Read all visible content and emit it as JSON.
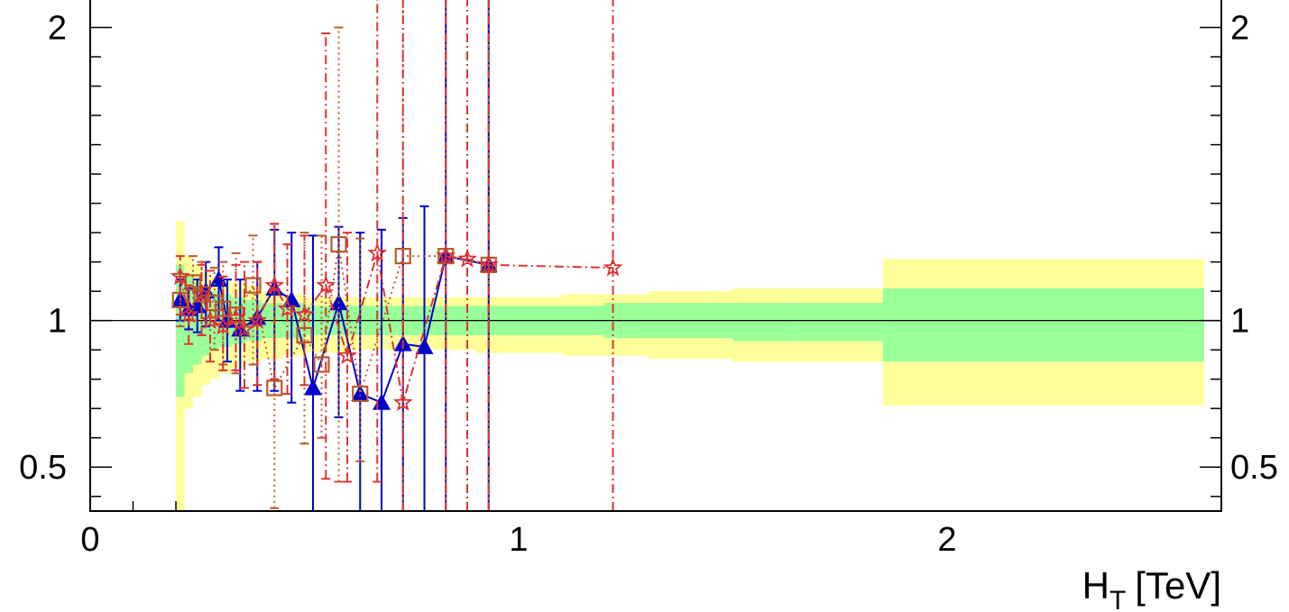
{
  "chart_data": {
    "type": "scatter",
    "title": "",
    "xlabel": "H",
    "xlabel_sub": "T",
    "xlabel_unit": "[TeV]",
    "ylabel": "",
    "xlim": [
      0,
      2.64
    ],
    "ylim": [
      0.35,
      2.1
    ],
    "x_ticks": [
      {
        "value": 0,
        "label": "0"
      },
      {
        "value": 1,
        "label": "1"
      },
      {
        "value": 2,
        "label": "2"
      }
    ],
    "y_ticks": [
      {
        "value": 0.5,
        "label": "0.5"
      },
      {
        "value": 1,
        "label": "1"
      },
      {
        "value": 2,
        "label": "2"
      }
    ],
    "reference_line": 1,
    "grid": false,
    "legend": "none",
    "bands": {
      "outer_color": "#ffff99",
      "inner_color": "#99ff99",
      "bins": [
        {
          "x0": 0.2,
          "x1": 0.22,
          "outer": [
            0.3,
            1.34
          ],
          "inner": [
            0.74,
            1.19
          ]
        },
        {
          "x0": 0.22,
          "x1": 0.24,
          "outer": [
            0.7,
            1.22
          ],
          "inner": [
            0.82,
            1.15
          ]
        },
        {
          "x0": 0.24,
          "x1": 0.26,
          "outer": [
            0.74,
            1.19
          ],
          "inner": [
            0.85,
            1.13
          ]
        },
        {
          "x0": 0.26,
          "x1": 0.28,
          "outer": [
            0.78,
            1.17
          ],
          "inner": [
            0.88,
            1.12
          ]
        },
        {
          "x0": 0.28,
          "x1": 0.3,
          "outer": [
            0.8,
            1.15
          ],
          "inner": [
            0.9,
            1.1
          ]
        },
        {
          "x0": 0.3,
          "x1": 0.33,
          "outer": [
            0.82,
            1.14
          ],
          "inner": [
            0.91,
            1.09
          ]
        },
        {
          "x0": 0.33,
          "x1": 0.36,
          "outer": [
            0.84,
            1.13
          ],
          "inner": [
            0.92,
            1.08
          ]
        },
        {
          "x0": 0.36,
          "x1": 0.4,
          "outer": [
            0.86,
            1.12
          ],
          "inner": [
            0.93,
            1.07
          ]
        },
        {
          "x0": 0.4,
          "x1": 0.45,
          "outer": [
            0.87,
            1.1
          ],
          "inner": [
            0.94,
            1.06
          ]
        },
        {
          "x0": 0.45,
          "x1": 0.5,
          "outer": [
            0.88,
            1.09
          ],
          "inner": [
            0.94,
            1.06
          ]
        },
        {
          "x0": 0.5,
          "x1": 0.6,
          "outer": [
            0.89,
            1.08
          ],
          "inner": [
            0.95,
            1.05
          ]
        },
        {
          "x0": 0.6,
          "x1": 0.7,
          "outer": [
            0.9,
            1.08
          ],
          "inner": [
            0.95,
            1.05
          ]
        },
        {
          "x0": 0.7,
          "x1": 0.8,
          "outer": [
            0.9,
            1.08
          ],
          "inner": [
            0.95,
            1.05
          ]
        },
        {
          "x0": 0.8,
          "x1": 0.9,
          "outer": [
            0.9,
            1.08
          ],
          "inner": [
            0.95,
            1.05
          ]
        },
        {
          "x0": 0.9,
          "x1": 1.0,
          "outer": [
            0.89,
            1.08
          ],
          "inner": [
            0.95,
            1.05
          ]
        },
        {
          "x0": 1.0,
          "x1": 1.1,
          "outer": [
            0.89,
            1.08
          ],
          "inner": [
            0.95,
            1.05
          ]
        },
        {
          "x0": 1.1,
          "x1": 1.2,
          "outer": [
            0.88,
            1.09
          ],
          "inner": [
            0.95,
            1.05
          ]
        },
        {
          "x0": 1.2,
          "x1": 1.3,
          "outer": [
            0.88,
            1.09
          ],
          "inner": [
            0.94,
            1.06
          ]
        },
        {
          "x0": 1.3,
          "x1": 1.4,
          "outer": [
            0.87,
            1.1
          ],
          "inner": [
            0.94,
            1.06
          ]
        },
        {
          "x0": 1.4,
          "x1": 1.5,
          "outer": [
            0.87,
            1.1
          ],
          "inner": [
            0.94,
            1.06
          ]
        },
        {
          "x0": 1.5,
          "x1": 1.65,
          "outer": [
            0.86,
            1.11
          ],
          "inner": [
            0.93,
            1.06
          ]
        },
        {
          "x0": 1.65,
          "x1": 1.85,
          "outer": [
            0.86,
            1.11
          ],
          "inner": [
            0.93,
            1.06
          ]
        },
        {
          "x0": 1.85,
          "x1": 2.6,
          "outer": [
            0.71,
            1.21
          ],
          "inner": [
            0.86,
            1.11
          ]
        }
      ]
    },
    "series": [
      {
        "marker": "triangle",
        "color": "#0000cc",
        "line_style": "solid",
        "points": [
          {
            "x": 0.21,
            "y": 1.07,
            "lo": 1.0,
            "hi": 1.14
          },
          {
            "x": 0.23,
            "y": 1.04,
            "lo": 0.97,
            "hi": 1.11
          },
          {
            "x": 0.25,
            "y": 1.05,
            "lo": 0.96,
            "hi": 1.14
          },
          {
            "x": 0.27,
            "y": 1.1,
            "lo": 0.98,
            "hi": 1.2
          },
          {
            "x": 0.3,
            "y": 1.14,
            "lo": 1.0,
            "hi": 1.25
          },
          {
            "x": 0.32,
            "y": 1.0,
            "lo": 0.86,
            "hi": 1.14
          },
          {
            "x": 0.35,
            "y": 0.97,
            "lo": 0.76,
            "hi": 1.14
          },
          {
            "x": 0.39,
            "y": 1.01,
            "lo": 0.76,
            "hi": 1.2
          },
          {
            "x": 0.43,
            "y": 1.11,
            "lo": 0.76,
            "hi": 1.31
          },
          {
            "x": 0.47,
            "y": 1.07,
            "lo": 0.72,
            "hi": 1.3
          },
          {
            "x": 0.52,
            "y": 0.77,
            "lo": 0.35,
            "hi": 1.29
          },
          {
            "x": 0.58,
            "y": 1.06,
            "lo": 0.67,
            "hi": 1.32
          },
          {
            "x": 0.63,
            "y": 0.75,
            "lo": 0.35,
            "hi": 1.3
          },
          {
            "x": 0.68,
            "y": 0.72,
            "lo": 0.35,
            "hi": 1.31
          },
          {
            "x": 0.73,
            "y": 0.92,
            "lo": 0.35,
            "hi": 1.35
          },
          {
            "x": 0.78,
            "y": 0.91,
            "lo": 0.35,
            "hi": 1.39
          },
          {
            "x": 0.83,
            "y": 1.22,
            "lo": 0.35,
            "hi": 2.1
          },
          {
            "x": 0.93,
            "y": 1.19,
            "lo": 0.35,
            "hi": 2.1
          }
        ]
      },
      {
        "marker": "open-square",
        "color": "#b85c2c",
        "line_style": "dotted",
        "points": [
          {
            "x": 0.21,
            "y": 1.07,
            "lo": 0.98,
            "hi": 1.15
          },
          {
            "x": 0.24,
            "y": 1.13,
            "lo": 1.0,
            "hi": 1.22
          },
          {
            "x": 0.26,
            "y": 1.09,
            "lo": 0.95,
            "hi": 1.2
          },
          {
            "x": 0.29,
            "y": 1.06,
            "lo": 0.9,
            "hi": 1.18
          },
          {
            "x": 0.31,
            "y": 1.04,
            "lo": 0.85,
            "hi": 1.2
          },
          {
            "x": 0.34,
            "y": 1.02,
            "lo": 0.82,
            "hi": 1.23
          },
          {
            "x": 0.38,
            "y": 1.12,
            "lo": 0.85,
            "hi": 1.29
          },
          {
            "x": 0.43,
            "y": 0.77,
            "lo": 0.36,
            "hi": 1.33
          },
          {
            "x": 0.5,
            "y": 0.95,
            "lo": 0.58,
            "hi": 1.3
          },
          {
            "x": 0.54,
            "y": 0.85,
            "lo": 0.6,
            "hi": 1.29
          },
          {
            "x": 0.58,
            "y": 1.26,
            "lo": 0.45,
            "hi": 2.0
          },
          {
            "x": 0.63,
            "y": 0.75,
            "lo": 0.52,
            "hi": 1.28
          },
          {
            "x": 0.73,
            "y": 1.22,
            "lo": 0.35,
            "hi": 2.1
          },
          {
            "x": 0.83,
            "y": 1.22,
            "lo": 0.35,
            "hi": 2.1
          },
          {
            "x": 0.93,
            "y": 1.19,
            "lo": 0.35,
            "hi": 2.1
          }
        ]
      },
      {
        "marker": "open-star",
        "color": "#dd3333",
        "line_style": "dash-dot",
        "points": [
          {
            "x": 0.21,
            "y": 1.15,
            "lo": 1.02,
            "hi": 1.22
          },
          {
            "x": 0.23,
            "y": 1.02,
            "lo": 0.92,
            "hi": 1.12
          },
          {
            "x": 0.26,
            "y": 1.09,
            "lo": 0.95,
            "hi": 1.19
          },
          {
            "x": 0.28,
            "y": 1.0,
            "lo": 0.86,
            "hi": 1.17
          },
          {
            "x": 0.31,
            "y": 0.98,
            "lo": 0.83,
            "hi": 1.15
          },
          {
            "x": 0.34,
            "y": 1.01,
            "lo": 0.83,
            "hi": 1.19
          },
          {
            "x": 0.36,
            "y": 0.97,
            "lo": 0.77,
            "hi": 1.2
          },
          {
            "x": 0.39,
            "y": 1.0,
            "lo": 0.78,
            "hi": 1.2
          },
          {
            "x": 0.43,
            "y": 1.12,
            "lo": 0.8,
            "hi": 1.33
          },
          {
            "x": 0.46,
            "y": 1.04,
            "lo": 0.75,
            "hi": 1.26
          },
          {
            "x": 0.5,
            "y": 1.02,
            "lo": 0.78,
            "hi": 1.29
          },
          {
            "x": 0.55,
            "y": 1.12,
            "lo": 0.46,
            "hi": 1.98
          },
          {
            "x": 0.6,
            "y": 0.88,
            "lo": 0.45,
            "hi": 1.3
          },
          {
            "x": 0.67,
            "y": 1.23,
            "lo": 0.45,
            "hi": 2.1
          },
          {
            "x": 0.73,
            "y": 0.72,
            "lo": 0.35,
            "hi": 2.1
          },
          {
            "x": 0.83,
            "y": 1.22,
            "lo": 0.35,
            "hi": 2.1
          },
          {
            "x": 0.88,
            "y": 1.21,
            "lo": 0.35,
            "hi": 2.1
          },
          {
            "x": 0.93,
            "y": 1.19,
            "lo": 0.35,
            "hi": 2.1
          },
          {
            "x": 1.22,
            "y": 1.18,
            "lo": 0.35,
            "hi": 2.1
          }
        ]
      }
    ]
  }
}
